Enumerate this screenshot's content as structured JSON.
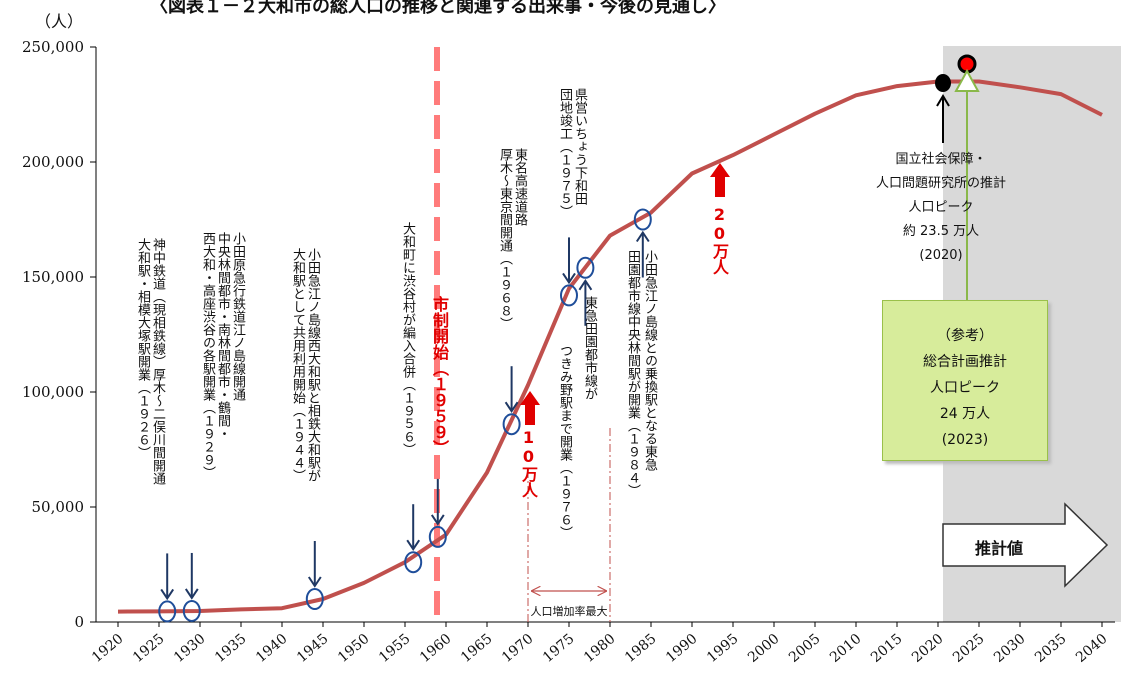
{
  "title_fragment": "〈図表１－２大和市の総人口の推移と関連する出来事・今後の見通し〉",
  "y_unit": "（人）",
  "chart_data": {
    "type": "line",
    "x": [
      1920,
      1925,
      1930,
      1935,
      1940,
      1945,
      1950,
      1955,
      1960,
      1965,
      1970,
      1975,
      1980,
      1985,
      1990,
      1995,
      2000,
      2005,
      2010,
      2015,
      2020,
      2025,
      2030,
      2035,
      2040
    ],
    "y": [
      4500,
      4600,
      4800,
      5500,
      6000,
      10000,
      17000,
      26000,
      38000,
      65000,
      103000,
      145000,
      168000,
      178000,
      195000,
      203000,
      212000,
      221000,
      229000,
      233000,
      235000,
      235000,
      232500,
      229500,
      220500
    ],
    "ylim": [
      0,
      250000
    ],
    "yticks": [
      "0",
      "50,000",
      "100,000",
      "150,000",
      "200,000",
      "250,000"
    ],
    "xticks": [
      "1920",
      "1925",
      "1930",
      "1935",
      "1940",
      "1945",
      "1950",
      "1955",
      "1960",
      "1965",
      "1970",
      "1975",
      "1980",
      "1985",
      "1990",
      "1995",
      "2000",
      "2005",
      "2010",
      "2015",
      "2020",
      "2025",
      "2030",
      "2035",
      "2040"
    ],
    "estimate_from": 2020,
    "grid": false,
    "line_color": "#c0504d"
  },
  "events": [
    {
      "text": "神中鉄道（現相鉄線）厚木～二俣川間開通",
      "text2": "大和駅・相模大塚駅開業（１９２６）"
    },
    {
      "text": "小田原急行鉄道江ノ島線開通",
      "text2": "中央林間都市・南林間都市・鶴間・",
      "text3": "西大和・高座渋谷の各駅開業（１９２９）"
    },
    {
      "text": "小田急江ノ島線西大和駅と相鉄大和駅が",
      "text2": "大和駅として共用利用開始（１９４４）"
    },
    {
      "text": "大和町に渋谷村が編入合併（１９５６）"
    },
    {
      "text": "市制開始（１９５９）"
    },
    {
      "text": "東名高速道路",
      "text2": "厚木～東京間開通（１９６８）"
    },
    {
      "text": "県営いちょう下和田",
      "text2": "団地竣工（１９７５）"
    },
    {
      "text": "東急田園都市線が",
      "text2": "つきみ野駅まで開業（１９７６）"
    },
    {
      "text": "小田急江ノ島線との乗換駅となる東急",
      "text2": "田園都市線中央林間駅が開業（１９８４）"
    }
  ],
  "milestones": {
    "ten": "10万人",
    "twenty": "20万人"
  },
  "max_growth_label": "人口増加率最大",
  "estimate_label": "推計値",
  "ipss_callout": [
    "国立社会保障・",
    "人口問題研究所の推計",
    "人口ピーク",
    "約 23.5 万人",
    "(2020)"
  ],
  "ref_callout": [
    "（参考）",
    "総合計画推計",
    "人口ピーク",
    "24 万人",
    "(2023)"
  ]
}
